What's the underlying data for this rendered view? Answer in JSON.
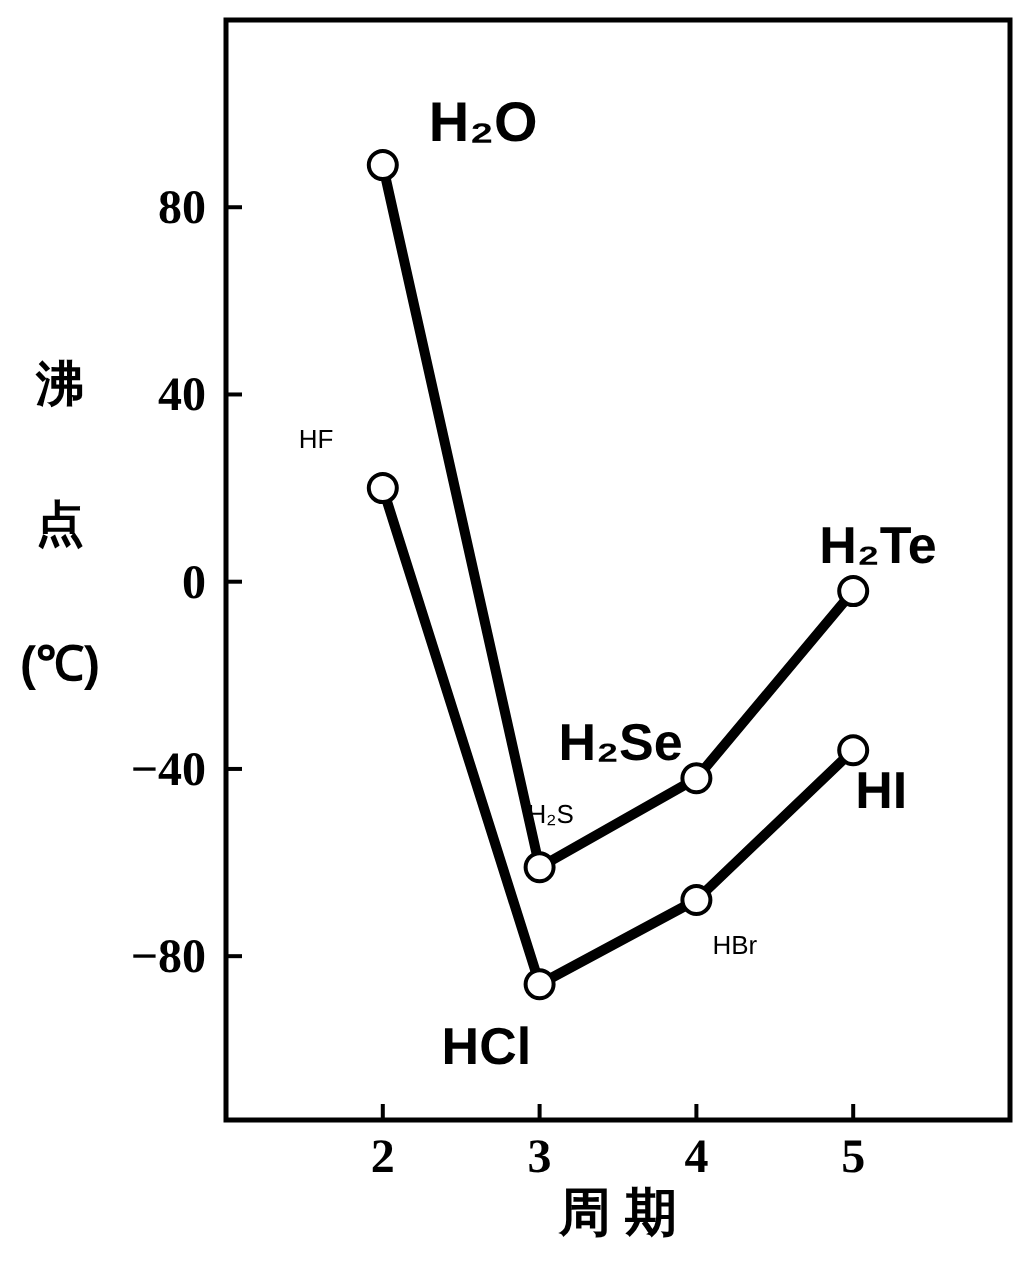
{
  "chart_data": {
    "type": "line",
    "xlabel": "周 期",
    "ylabel": "沸点(℃)",
    "x": [
      2,
      3,
      4,
      5
    ],
    "series": [
      {
        "color": "#000000",
        "values": [
          89,
          -61,
          -42,
          -2
        ]
      },
      {
        "color": "#000000",
        "values": [
          20,
          -86,
          -68,
          -36
        ]
      }
    ],
    "xlim": [
      1,
      6
    ],
    "ylim": [
      -115,
      120
    ],
    "xticks": [
      2,
      3,
      4,
      5
    ],
    "yticks": [
      80,
      40,
      0,
      {
        "value": -40,
        "label": "−40"
      },
      {
        "value": -80,
        "label": "−80"
      }
    ],
    "marker": "circle",
    "line_style": "solid",
    "annotations": [
      {
        "text": "H₂O",
        "x": 2,
        "y": 89
      },
      {
        "text": "HF",
        "x": 2,
        "y": 20
      },
      {
        "text": "H₂S",
        "x": 3,
        "y": -61
      },
      {
        "text": "HCl",
        "x": 3,
        "y": -86
      },
      {
        "text": "H₂Se",
        "x": 4,
        "y": -42
      },
      {
        "text": "HBr",
        "x": 4,
        "y": -68
      },
      {
        "text": "H₂Te",
        "x": 5,
        "y": -2
      },
      {
        "text": "HI",
        "x": 5,
        "y": -36
      }
    ]
  }
}
